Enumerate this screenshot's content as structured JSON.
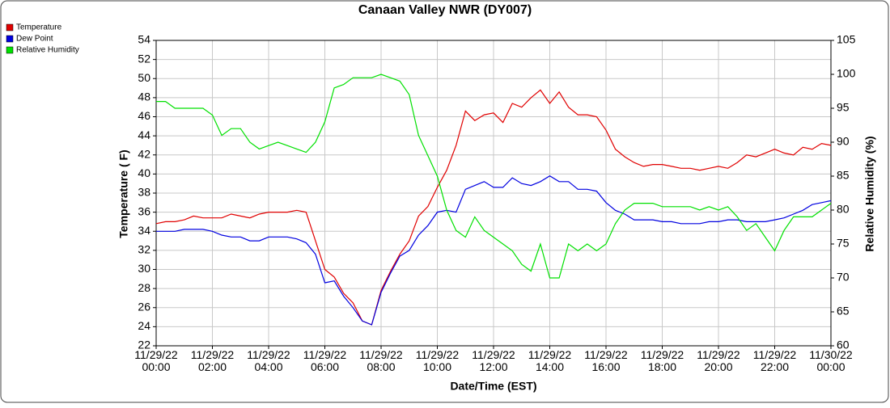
{
  "chart_data": {
    "type": "line",
    "title": "Canaan Valley NWR (DY007)",
    "xlabel": "Date/Time (EST)",
    "ylabel": "Temperature ( F)",
    "y2label": "Relative Humidity (%)",
    "x": [
      "11/29/22 00:00",
      "11/29/22 00:20",
      "11/29/22 00:40",
      "11/29/22 01:00",
      "11/29/22 01:20",
      "11/29/22 01:40",
      "11/29/22 02:00",
      "11/29/22 02:20",
      "11/29/22 02:40",
      "11/29/22 03:00",
      "11/29/22 03:20",
      "11/29/22 03:40",
      "11/29/22 04:00",
      "11/29/22 04:20",
      "11/29/22 04:40",
      "11/29/22 05:00",
      "11/29/22 05:20",
      "11/29/22 05:40",
      "11/29/22 06:00",
      "11/29/22 06:20",
      "11/29/22 06:40",
      "11/29/22 07:00",
      "11/29/22 07:20",
      "11/29/22 07:40",
      "11/29/22 08:00",
      "11/29/22 08:20",
      "11/29/22 08:40",
      "11/29/22 09:00",
      "11/29/22 09:20",
      "11/29/22 09:40",
      "11/29/22 10:00",
      "11/29/22 10:20",
      "11/29/22 10:40",
      "11/29/22 11:00",
      "11/29/22 11:20",
      "11/29/22 11:40",
      "11/29/22 12:00",
      "11/29/22 12:20",
      "11/29/22 12:40",
      "11/29/22 13:00",
      "11/29/22 13:20",
      "11/29/22 13:40",
      "11/29/22 14:00",
      "11/29/22 14:20",
      "11/29/22 14:40",
      "11/29/22 15:00",
      "11/29/22 15:20",
      "11/29/22 15:40",
      "11/29/22 16:00",
      "11/29/22 16:20",
      "11/29/22 16:40",
      "11/29/22 17:00",
      "11/29/22 17:20",
      "11/29/22 17:40",
      "11/29/22 18:00",
      "11/29/22 18:20",
      "11/29/22 18:40",
      "11/29/22 19:00",
      "11/29/22 19:20",
      "11/29/22 19:40",
      "11/29/22 20:00",
      "11/29/22 20:20",
      "11/29/22 20:40",
      "11/29/22 21:00",
      "11/29/22 21:20",
      "11/29/22 21:40",
      "11/29/22 22:00",
      "11/29/22 22:20",
      "11/29/22 22:40",
      "11/29/22 23:00",
      "11/29/22 23:20",
      "11/29/22 23:40",
      "11/30/22 00:00"
    ],
    "series": [
      {
        "name": "Temperature",
        "color": "#e00000",
        "axis": "y",
        "values": [
          34.8,
          35,
          35,
          35.2,
          35.6,
          35.4,
          35.4,
          35.4,
          35.8,
          35.6,
          35.4,
          35.8,
          36,
          36,
          36,
          36.2,
          36,
          33,
          30,
          29.2,
          27.5,
          26.5,
          24.6,
          24.2,
          27.8,
          29.8,
          31.6,
          33,
          35.6,
          36.6,
          38.6,
          40.4,
          43,
          46.6,
          45.6,
          46.2,
          46.4,
          45.4,
          47.4,
          47,
          48,
          48.8,
          47.4,
          48.6,
          47,
          46.2,
          46.2,
          46,
          44.6,
          42.6,
          41.8,
          41.2,
          40.8,
          41,
          41,
          40.8,
          40.6,
          40.6,
          40.4,
          40.6,
          40.8,
          40.6,
          41.2,
          42,
          41.8,
          42.2,
          42.6,
          42.2,
          42,
          42.8,
          42.6,
          43.2,
          43
        ]
      },
      {
        "name": "Dew Point",
        "color": "#0000e0",
        "axis": "y",
        "values": [
          34,
          34,
          34,
          34.2,
          34.2,
          34.2,
          34,
          33.6,
          33.4,
          33.4,
          33,
          33,
          33.4,
          33.4,
          33.4,
          33.2,
          32.8,
          31.6,
          28.6,
          28.8,
          27.2,
          26,
          24.6,
          24.2,
          27.6,
          29.6,
          31.4,
          32,
          33.6,
          34.6,
          36,
          36.2,
          36,
          38.4,
          38.8,
          39.2,
          38.6,
          38.6,
          39.6,
          39,
          38.8,
          39.2,
          39.8,
          39.2,
          39.2,
          38.4,
          38.4,
          38.2,
          37,
          36.2,
          35.8,
          35.2,
          35.2,
          35.2,
          35,
          35,
          34.8,
          34.8,
          34.8,
          35,
          35,
          35.2,
          35.2,
          35,
          35,
          35,
          35.2,
          35.4,
          35.8,
          36.2,
          36.8,
          37,
          37.2
        ]
      },
      {
        "name": "Relative Humidity",
        "color": "#00e000",
        "axis": "y2",
        "values": [
          96,
          96,
          95,
          95,
          95,
          95,
          94,
          91,
          92,
          92,
          90,
          89,
          89.5,
          90,
          89.5,
          89,
          88.5,
          90,
          93,
          98,
          98.5,
          99.5,
          99.5,
          99.5,
          100,
          99.5,
          99,
          97,
          91,
          88,
          85,
          80,
          77,
          76,
          79,
          77,
          76,
          75,
          74,
          72,
          71,
          75,
          70,
          70,
          75,
          74,
          75,
          74,
          75,
          78,
          80,
          81,
          81,
          81,
          80.5,
          80.5,
          80.5,
          80.5,
          80,
          80.5,
          80,
          80.5,
          79,
          77,
          78,
          76,
          74,
          77,
          79,
          79,
          79,
          80,
          81
        ]
      }
    ],
    "xlim": [
      "11/29/22 00:00",
      "11/30/22 00:00"
    ],
    "xticks": [
      "11/29/22 00:00",
      "11/29/22 02:00",
      "11/29/22 04:00",
      "11/29/22 06:00",
      "11/29/22 08:00",
      "11/29/22 10:00",
      "11/29/22 12:00",
      "11/29/22 14:00",
      "11/29/22 16:00",
      "11/29/22 18:00",
      "11/29/22 20:00",
      "11/29/22 22:00",
      "11/30/22 00:00"
    ],
    "ylim": [
      22,
      54
    ],
    "yticks": [
      22,
      24,
      26,
      28,
      30,
      32,
      34,
      36,
      38,
      40,
      42,
      44,
      46,
      48,
      50,
      52,
      54
    ],
    "y2lim": [
      60,
      105
    ],
    "y2ticks": [
      60,
      65,
      70,
      75,
      80,
      85,
      90,
      95,
      100,
      105
    ],
    "grid": true,
    "legend": "top-left"
  }
}
